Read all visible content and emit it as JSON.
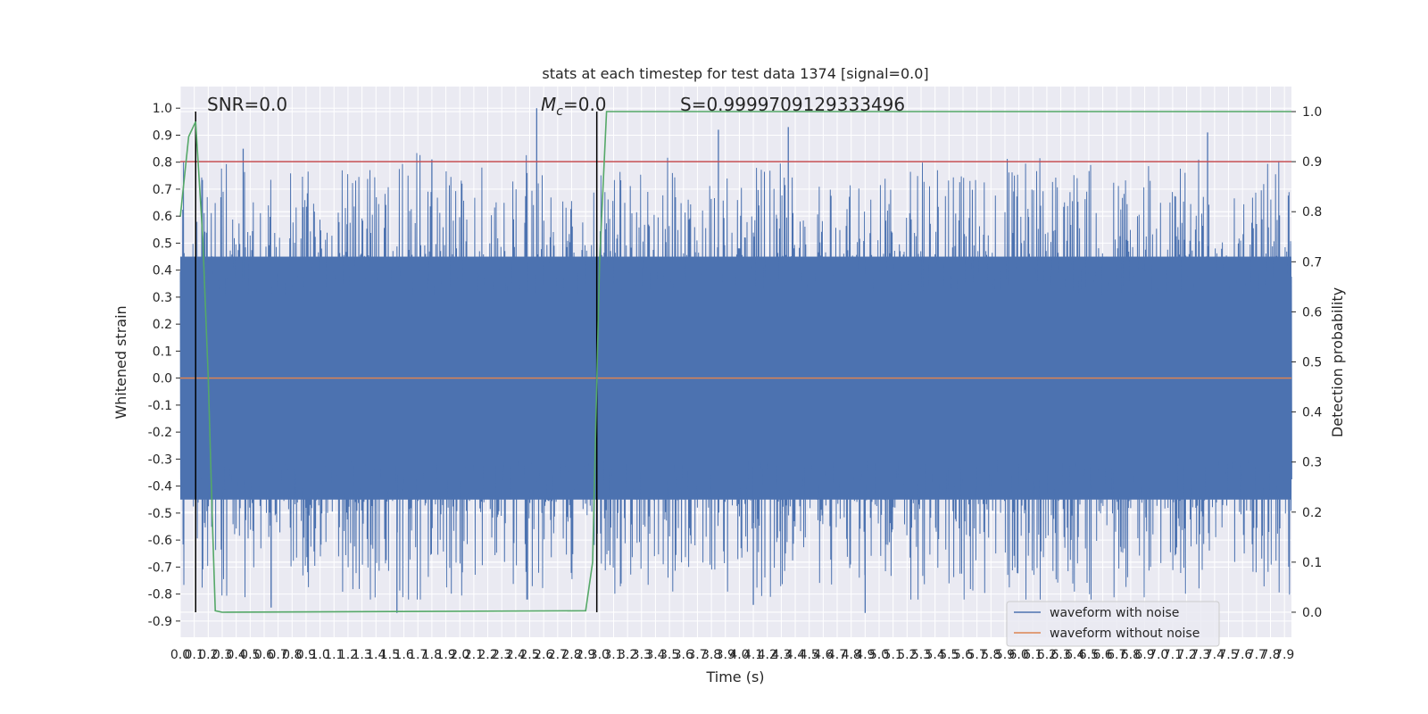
{
  "chart_data": {
    "type": "line",
    "title": "stats at each timestep for test data 1374 [signal=0.0]",
    "xlabel": "Time (s)",
    "ylabel": "Whitened strain",
    "y2label": "Detection probability",
    "xlim": [
      0.0,
      7.95
    ],
    "ylim": [
      -0.96,
      1.08
    ],
    "y2lim": [
      -0.05,
      1.05
    ],
    "x_ticks": [
      "0.0",
      "0.1",
      "0.2",
      "0.3",
      "0.4",
      "0.5",
      "0.6",
      "0.7",
      "0.8",
      "0.9",
      "1.0",
      "1.1",
      "1.2",
      "1.3",
      "1.4",
      "1.5",
      "1.6",
      "1.7",
      "1.8",
      "1.9",
      "2.0",
      "2.1",
      "2.2",
      "2.3",
      "2.4",
      "2.5",
      "2.6",
      "2.7",
      "2.8",
      "2.9",
      "3.0",
      "3.1",
      "3.2",
      "3.3",
      "3.4",
      "3.5",
      "3.6",
      "3.7",
      "3.8",
      "3.9",
      "4.0",
      "4.1",
      "4.2",
      "4.3",
      "4.4",
      "4.5",
      "4.6",
      "4.7",
      "4.8",
      "4.9",
      "5.0",
      "5.1",
      "5.2",
      "5.3",
      "5.4",
      "5.5",
      "5.6",
      "5.7",
      "5.8",
      "5.9",
      "6.0",
      "6.1",
      "6.2",
      "6.3",
      "6.4",
      "6.5",
      "6.6",
      "6.7",
      "6.8",
      "6.9",
      "7.0",
      "7.1",
      "7.2",
      "7.3",
      "7.4",
      "7.5",
      "7.6",
      "7.7",
      "7.8",
      "7.9"
    ],
    "y_ticks": [
      "1.0",
      "0.9",
      "0.8",
      "0.7",
      "0.6",
      "0.5",
      "0.4",
      "0.3",
      "0.2",
      "0.1",
      "0.0",
      "-0.1",
      "-0.2",
      "-0.3",
      "-0.4",
      "-0.5",
      "-0.6",
      "-0.7",
      "-0.8",
      "-0.9"
    ],
    "y2_ticks": [
      "1.0",
      "0.9",
      "0.8",
      "0.7",
      "0.6",
      "0.5",
      "0.4",
      "0.3",
      "0.2",
      "0.1",
      "0.0"
    ],
    "annotations": {
      "snr": "SNR=0.0",
      "mc_symbol": "M",
      "mc_sub": "c",
      "mc_value": "=0.0",
      "s": "S=0.9999709129333496"
    },
    "series": [
      {
        "name": "waveform with noise",
        "color": "#4c72b0",
        "description_values": {
          "envelope_max_approx": 0.45,
          "envelope_min_approx": -0.45,
          "spike_peaks": [
            [
              2.55,
              1.0
            ],
            [
              4.35,
              0.93
            ],
            [
              7.35,
              0.91
            ],
            [
              3.85,
              0.92
            ],
            [
              0.45,
              0.85
            ],
            [
              1.8,
              0.81
            ]
          ],
          "spike_troughs": [
            [
              1.55,
              -0.87
            ],
            [
              4.9,
              -0.87
            ],
            [
              0.65,
              -0.85
            ],
            [
              4.1,
              -0.84
            ]
          ]
        }
      },
      {
        "name": "waveform without noise",
        "color": "#dd8452",
        "points": [
          [
            0.0,
            0.0
          ],
          [
            7.95,
            0.0
          ]
        ]
      },
      {
        "name": "",
        "color": "#55a868",
        "axis": "right",
        "points": [
          [
            0.0,
            0.79
          ],
          [
            0.06,
            0.95
          ],
          [
            0.11,
            0.98
          ],
          [
            0.16,
            0.75
          ],
          [
            0.2,
            0.47
          ],
          [
            0.23,
            0.18
          ],
          [
            0.25,
            0.003
          ],
          [
            0.3,
            0.0
          ],
          [
            2.9,
            0.003
          ],
          [
            2.95,
            0.1
          ],
          [
            3.0,
            0.7
          ],
          [
            3.05,
            1.0
          ],
          [
            7.95,
            1.0
          ]
        ]
      }
    ],
    "threshold_line": {
      "color": "#c44e52",
      "y2_value": 0.9
    },
    "vertical_lines": [
      {
        "x": 0.11,
        "color": "#000000"
      },
      {
        "x": 2.98,
        "color": "#000000"
      }
    ],
    "legend_position": "lower-right",
    "grid": true
  }
}
